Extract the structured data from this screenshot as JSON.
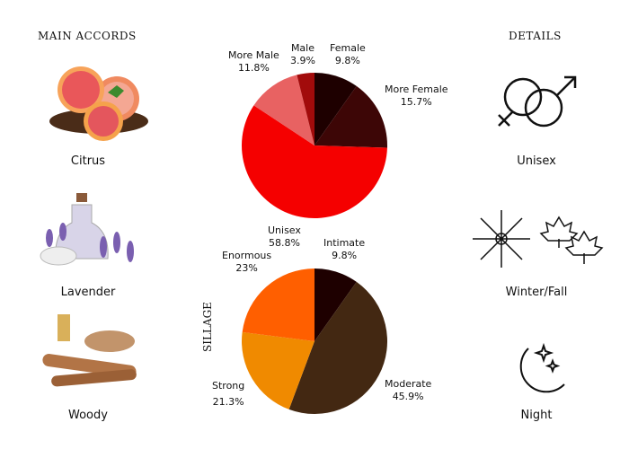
{
  "left": {
    "heading": "MAIN ACCORDS",
    "items": [
      {
        "label": "Citrus",
        "icon": "grapefruit-image"
      },
      {
        "label": "Lavender",
        "icon": "lavender-image"
      },
      {
        "label": "Woody",
        "icon": "sandalwood-image"
      }
    ]
  },
  "right": {
    "heading": "DETAILS",
    "items": [
      {
        "label": "Unisex",
        "icon": "gender-icon"
      },
      {
        "label": "Winter/Fall",
        "icon": "snowflake-leaves-icon"
      },
      {
        "label": "Night",
        "icon": "moon-stars-icon"
      }
    ]
  },
  "chart_data": [
    {
      "type": "pie",
      "title": "",
      "slices": [
        {
          "name": "Female",
          "value": 9.8,
          "display": "9.8%",
          "color": "#1e0000"
        },
        {
          "name": "More Female",
          "value": 15.7,
          "display": "15.7%",
          "color": "#3d0606"
        },
        {
          "name": "Unisex",
          "value": 58.8,
          "display": "58.8%",
          "color": "#f50000"
        },
        {
          "name": "More Male",
          "value": 11.8,
          "display": "11.8%",
          "color": "#e86262"
        },
        {
          "name": "Male",
          "value": 3.9,
          "display": "3.9%",
          "color": "#a20b0b"
        }
      ]
    },
    {
      "type": "pie",
      "title": "SILLAGE",
      "slices": [
        {
          "name": "Intimate",
          "value": 9.8,
          "display": "9.8%",
          "color": "#1e0000"
        },
        {
          "name": "Moderate",
          "value": 45.9,
          "display": "45.9%",
          "color": "#432812"
        },
        {
          "name": "Strong",
          "value": 21.3,
          "display": "21.3%",
          "color": "#f08a00"
        },
        {
          "name": "Enormous",
          "value": 23,
          "display": "23%",
          "color": "#ff5f00"
        }
      ]
    }
  ]
}
